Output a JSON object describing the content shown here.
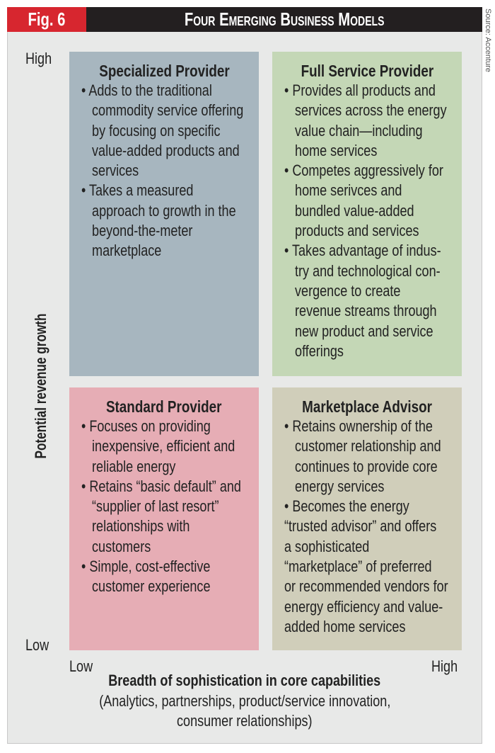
{
  "header": {
    "fig": "Fig. 6",
    "title": "Four Emerging Business Models"
  },
  "source": "Source: Accenture",
  "axes": {
    "y_label": "Potential revenue growth",
    "y_high": "High",
    "y_low": "Low",
    "x_low": "Low",
    "x_high": "High",
    "x_label": "Breadth of sophistication in core capabilities",
    "x_sub1": "(Analytics, partnerships, product/service innovation,",
    "x_sub2": "consumer relationships)"
  },
  "colors": {
    "specialized": "#a7b6bf",
    "full": "#c4d7b6",
    "standard": "#e6adb5",
    "advisor": "#d0ceba",
    "fig_red": "#d7262f"
  },
  "quadrants": [
    {
      "title": "Specialized Provider",
      "lines": [
        "• Adds to the traditional",
        "   commodity service offering",
        "   by focusing on specific",
        "   value-added products and",
        "   services",
        "• Takes a measured",
        "   approach to growth in the",
        "   beyond-the-meter",
        "   marketplace"
      ]
    },
    {
      "title": "Full Service Provider",
      "lines": [
        "• Provides all products and",
        "   services across the energy",
        "   value chain—including",
        "   home services",
        "• Competes aggressively for",
        "   home serivces and",
        "   bundled value-added",
        "   products and services",
        "• Takes advantage of indus-",
        "   try and technological con-",
        "   vergence to create",
        "   revenue streams through",
        "   new product and service",
        "   offerings"
      ]
    },
    {
      "title": "Standard Provider",
      "lines": [
        "• Focuses on providing",
        "   inexpensive, efficient and",
        "   reliable energy",
        "• Retains “basic default” and",
        "   “supplier of last resort”",
        "   relationships with",
        "   customers",
        "• Simple, cost-effective",
        "   customer experience"
      ]
    },
    {
      "title": "Marketplace Advisor",
      "lines": [
        "• Retains ownership of the",
        "   customer relationship and",
        "   continues to provide core",
        "   energy services",
        "• Becomes the energy",
        "“trusted advisor” and offers",
        "a sophisticated",
        "“marketplace” of preferred",
        "or recommended vendors for",
        "energy efficiency and value-",
        "added home services"
      ]
    }
  ]
}
